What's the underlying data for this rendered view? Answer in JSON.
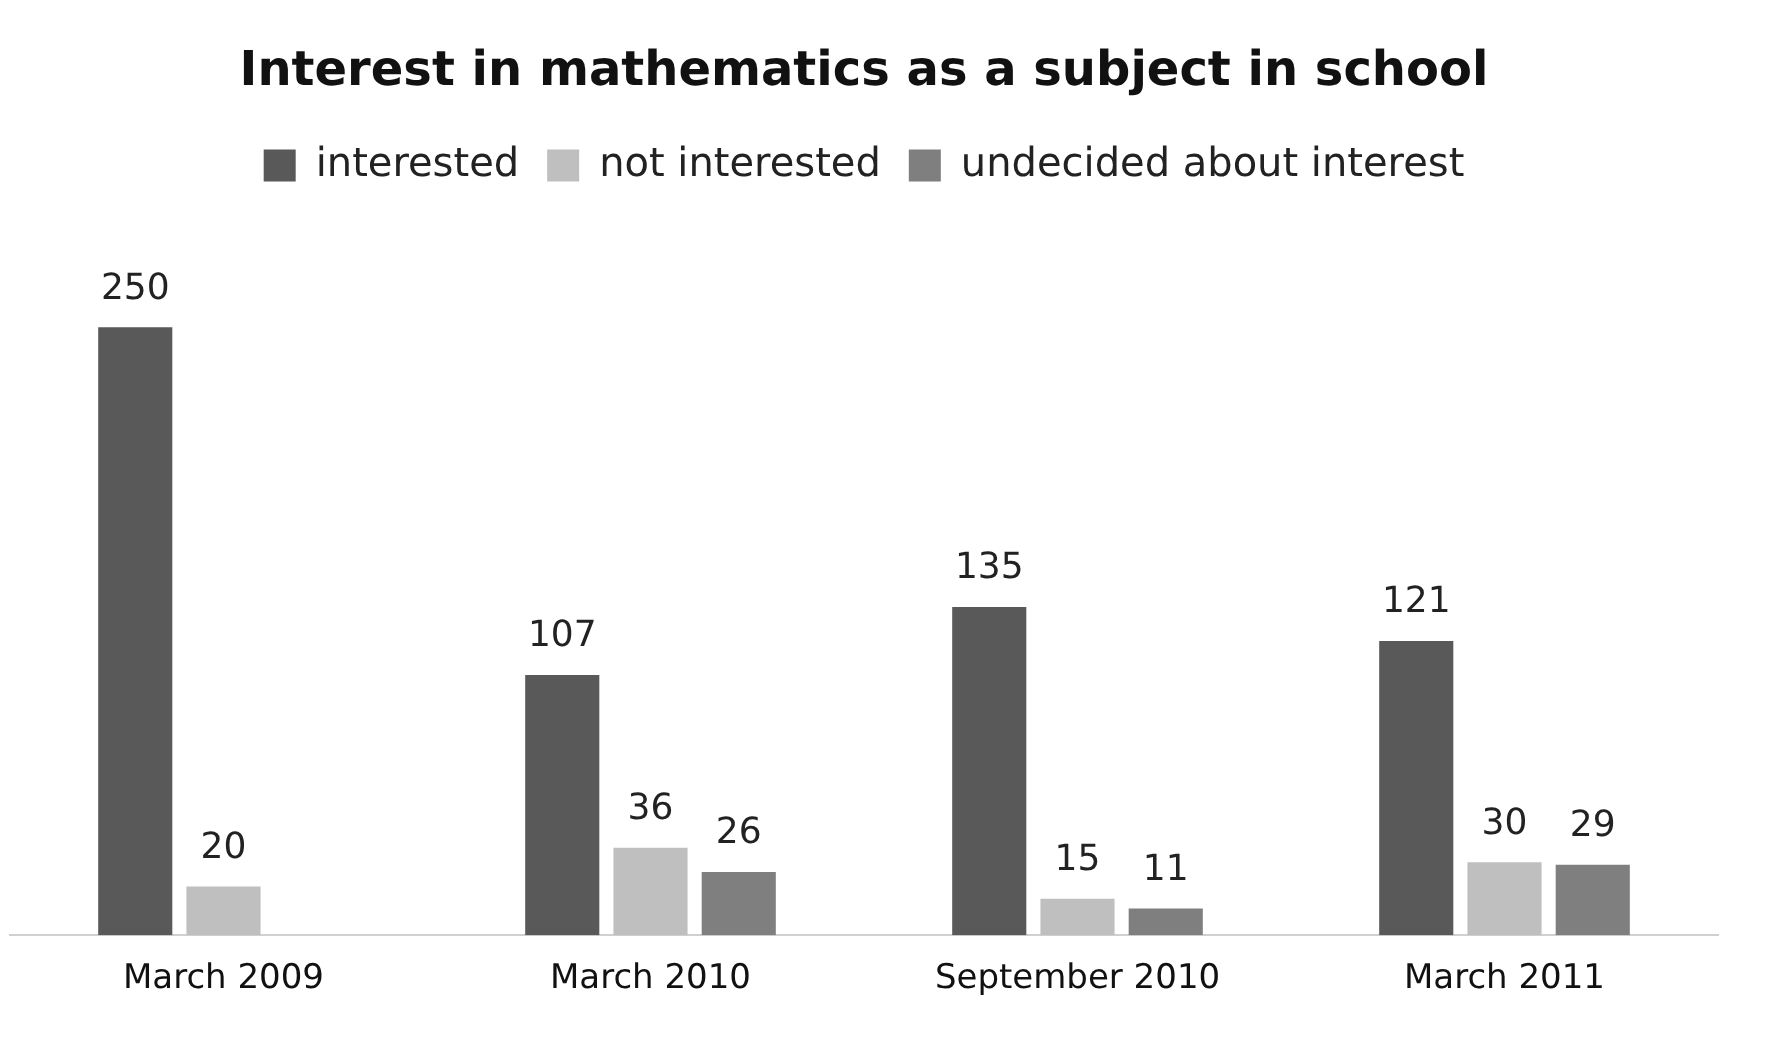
{
  "chart_data": {
    "type": "bar",
    "title": "Interest in mathematics as a subject in school",
    "categories": [
      "March 2009",
      "March 2010",
      "September 2010",
      "March 2011"
    ],
    "series": [
      {
        "name": "interested",
        "color": "#595959",
        "values": [
          250,
          107,
          135,
          121
        ]
      },
      {
        "name": "not interested",
        "color": "#bfbfbf",
        "values": [
          20,
          36,
          15,
          30
        ]
      },
      {
        "name": "undecided about interest",
        "color": "#7f7f7f",
        "values": [
          null,
          26,
          11,
          29
        ]
      }
    ],
    "data_labels": true,
    "legend": "top",
    "grid": false,
    "tick_labels": "x"
  }
}
